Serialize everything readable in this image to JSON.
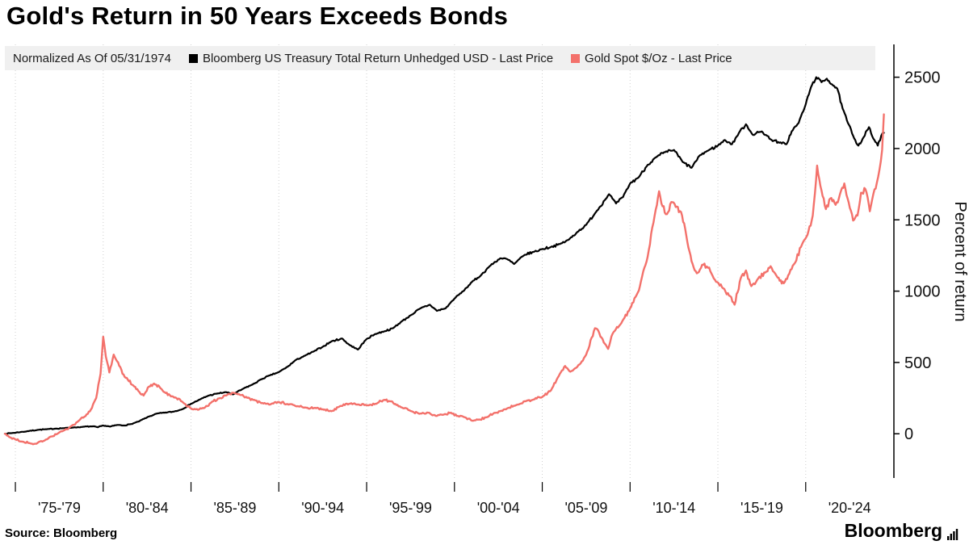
{
  "page": {
    "title": "Gold's Return in 50 Years Exceeds Bonds"
  },
  "legend": {
    "note": "Normalized As Of 05/31/1974",
    "series": [
      {
        "label": "Bloomberg US Treasury Total Return Unhedged USD - Last Price",
        "color": "#000000"
      },
      {
        "label": "Gold Spot $/Oz - Last Price",
        "color": "#f3716b"
      }
    ]
  },
  "footer": {
    "source": "Source: Bloomberg",
    "brand": "Bloomberg"
  },
  "chart_data": {
    "type": "line",
    "title": "Gold's Return in 50 Years Exceeds Bonds",
    "subtitle": "Normalized As Of 05/31/1974",
    "xlabel": "",
    "ylabel": "Percent of return",
    "y_axis_side": "right",
    "legend_position": "top",
    "grid": "vertical-dotted",
    "y_ticks": [
      0,
      500,
      1000,
      1500,
      2000,
      2500
    ],
    "ylim": [
      -310,
      2730
    ],
    "x_range": [
      1974.4,
      2024.7
    ],
    "x_tick_labels": [
      "'75-'79",
      "'80-'84",
      "'85-'89",
      "'90-'94",
      "'95-'99",
      "'00-'04",
      "'05-'09",
      "'10-'14",
      "'15-'19",
      "'20-'24"
    ],
    "x_tick_centers": [
      1977.5,
      1982.5,
      1987.5,
      1992.5,
      1997.5,
      2002.5,
      2007.5,
      2012.5,
      2017.5,
      2022.5
    ],
    "x_grid_years": [
      1975,
      1980,
      1985,
      1990,
      1995,
      2000,
      2005,
      2010,
      2015,
      2020
    ],
    "series": [
      {
        "name": "Bloomberg US Treasury Total Return Unhedged USD - Last Price",
        "color": "#000000",
        "points": [
          [
            1974.4,
            0
          ],
          [
            1974.8,
            5
          ],
          [
            1975.3,
            12
          ],
          [
            1975.8,
            20
          ],
          [
            1976.3,
            28
          ],
          [
            1976.8,
            32
          ],
          [
            1977.3,
            36
          ],
          [
            1977.8,
            40
          ],
          [
            1978.3,
            44
          ],
          [
            1978.8,
            48
          ],
          [
            1979.3,
            52
          ],
          [
            1979.7,
            46
          ],
          [
            1980.0,
            58
          ],
          [
            1980.4,
            50
          ],
          [
            1980.8,
            62
          ],
          [
            1981.2,
            58
          ],
          [
            1981.6,
            68
          ],
          [
            1982.0,
            85
          ],
          [
            1982.5,
            115
          ],
          [
            1983.0,
            140
          ],
          [
            1983.5,
            148
          ],
          [
            1984.0,
            155
          ],
          [
            1984.5,
            172
          ],
          [
            1985.0,
            210
          ],
          [
            1985.5,
            240
          ],
          [
            1986.0,
            268
          ],
          [
            1986.5,
            282
          ],
          [
            1987.0,
            292
          ],
          [
            1987.4,
            276
          ],
          [
            1988.0,
            318
          ],
          [
            1988.5,
            345
          ],
          [
            1989.0,
            382
          ],
          [
            1989.5,
            410
          ],
          [
            1990.0,
            432
          ],
          [
            1990.5,
            470
          ],
          [
            1991.0,
            520
          ],
          [
            1991.5,
            548
          ],
          [
            1992.0,
            578
          ],
          [
            1992.5,
            610
          ],
          [
            1993.0,
            648
          ],
          [
            1993.6,
            668
          ],
          [
            1994.0,
            625
          ],
          [
            1994.5,
            590
          ],
          [
            1995.0,
            665
          ],
          [
            1995.5,
            700
          ],
          [
            1996.0,
            718
          ],
          [
            1996.5,
            740
          ],
          [
            1997.0,
            788
          ],
          [
            1997.5,
            830
          ],
          [
            1998.0,
            875
          ],
          [
            1998.6,
            905
          ],
          [
            1999.0,
            862
          ],
          [
            1999.5,
            880
          ],
          [
            2000.0,
            948
          ],
          [
            2000.5,
            1000
          ],
          [
            2001.0,
            1065
          ],
          [
            2001.5,
            1110
          ],
          [
            2002.0,
            1175
          ],
          [
            2002.6,
            1230
          ],
          [
            2003.0,
            1225
          ],
          [
            2003.4,
            1190
          ],
          [
            2004.0,
            1255
          ],
          [
            2004.5,
            1275
          ],
          [
            2005.0,
            1295
          ],
          [
            2005.5,
            1310
          ],
          [
            2006.0,
            1330
          ],
          [
            2006.5,
            1360
          ],
          [
            2007.0,
            1415
          ],
          [
            2007.5,
            1465
          ],
          [
            2008.0,
            1545
          ],
          [
            2008.8,
            1680
          ],
          [
            2009.2,
            1615
          ],
          [
            2009.6,
            1660
          ],
          [
            2010.0,
            1755
          ],
          [
            2010.5,
            1800
          ],
          [
            2011.0,
            1885
          ],
          [
            2011.5,
            1940
          ],
          [
            2012.0,
            1975
          ],
          [
            2012.5,
            1990
          ],
          [
            2013.0,
            1905
          ],
          [
            2013.5,
            1865
          ],
          [
            2014.0,
            1955
          ],
          [
            2014.5,
            1990
          ],
          [
            2015.0,
            2020
          ],
          [
            2015.4,
            2060
          ],
          [
            2015.8,
            2030
          ],
          [
            2016.2,
            2110
          ],
          [
            2016.6,
            2170
          ],
          [
            2017.0,
            2095
          ],
          [
            2017.5,
            2120
          ],
          [
            2018.0,
            2065
          ],
          [
            2018.5,
            2040
          ],
          [
            2018.9,
            2030
          ],
          [
            2019.2,
            2120
          ],
          [
            2019.6,
            2180
          ],
          [
            2020.0,
            2310
          ],
          [
            2020.3,
            2430
          ],
          [
            2020.6,
            2500
          ],
          [
            2020.9,
            2465
          ],
          [
            2021.2,
            2490
          ],
          [
            2021.5,
            2450
          ],
          [
            2021.8,
            2420
          ],
          [
            2022.1,
            2280
          ],
          [
            2022.4,
            2180
          ],
          [
            2022.7,
            2090
          ],
          [
            2023.0,
            2020
          ],
          [
            2023.3,
            2080
          ],
          [
            2023.6,
            2150
          ],
          [
            2023.85,
            2070
          ],
          [
            2024.1,
            2020
          ],
          [
            2024.3,
            2090
          ],
          [
            2024.45,
            2110
          ]
        ]
      },
      {
        "name": "Gold Spot $/Oz - Last Price",
        "color": "#f3716b",
        "points": [
          [
            1974.4,
            0
          ],
          [
            1974.7,
            -25
          ],
          [
            1975.0,
            -40
          ],
          [
            1975.4,
            -55
          ],
          [
            1975.8,
            -65
          ],
          [
            1976.2,
            -70
          ],
          [
            1976.6,
            -50
          ],
          [
            1977.0,
            -20
          ],
          [
            1977.4,
            0
          ],
          [
            1977.8,
            25
          ],
          [
            1978.2,
            55
          ],
          [
            1978.6,
            90
          ],
          [
            1979.0,
            125
          ],
          [
            1979.3,
            170
          ],
          [
            1979.6,
            250
          ],
          [
            1979.85,
            420
          ],
          [
            1980.0,
            680
          ],
          [
            1980.15,
            540
          ],
          [
            1980.35,
            430
          ],
          [
            1980.6,
            555
          ],
          [
            1980.85,
            500
          ],
          [
            1981.1,
            420
          ],
          [
            1981.4,
            380
          ],
          [
            1981.7,
            340
          ],
          [
            1982.0,
            300
          ],
          [
            1982.3,
            268
          ],
          [
            1982.6,
            330
          ],
          [
            1982.9,
            352
          ],
          [
            1983.2,
            330
          ],
          [
            1983.5,
            292
          ],
          [
            1983.8,
            270
          ],
          [
            1984.1,
            255
          ],
          [
            1984.5,
            225
          ],
          [
            1985.0,
            178
          ],
          [
            1985.4,
            168
          ],
          [
            1985.8,
            185
          ],
          [
            1986.2,
            225
          ],
          [
            1986.6,
            248
          ],
          [
            1987.0,
            268
          ],
          [
            1987.4,
            288
          ],
          [
            1987.8,
            272
          ],
          [
            1988.2,
            252
          ],
          [
            1988.6,
            238
          ],
          [
            1989.0,
            215
          ],
          [
            1989.5,
            205
          ],
          [
            1990.0,
            222
          ],
          [
            1990.5,
            208
          ],
          [
            1991.0,
            192
          ],
          [
            1991.5,
            185
          ],
          [
            1992.0,
            180
          ],
          [
            1992.5,
            172
          ],
          [
            1993.0,
            158
          ],
          [
            1993.5,
            195
          ],
          [
            1994.0,
            210
          ],
          [
            1994.5,
            205
          ],
          [
            1995.0,
            200
          ],
          [
            1995.5,
            210
          ],
          [
            1996.0,
            238
          ],
          [
            1996.4,
            228
          ],
          [
            1997.0,
            185
          ],
          [
            1997.5,
            160
          ],
          [
            1998.0,
            140
          ],
          [
            1998.5,
            148
          ],
          [
            1999.0,
            125
          ],
          [
            1999.4,
            135
          ],
          [
            1999.8,
            148
          ],
          [
            2000.2,
            125
          ],
          [
            2000.6,
            115
          ],
          [
            2001.0,
            92
          ],
          [
            2001.4,
            100
          ],
          [
            2001.8,
            115
          ],
          [
            2002.2,
            140
          ],
          [
            2002.6,
            158
          ],
          [
            2003.0,
            178
          ],
          [
            2003.5,
            200
          ],
          [
            2004.0,
            228
          ],
          [
            2004.5,
            240
          ],
          [
            2005.0,
            258
          ],
          [
            2005.5,
            305
          ],
          [
            2006.0,
            420
          ],
          [
            2006.3,
            475
          ],
          [
            2006.6,
            435
          ],
          [
            2007.0,
            470
          ],
          [
            2007.5,
            555
          ],
          [
            2008.0,
            740
          ],
          [
            2008.25,
            705
          ],
          [
            2008.5,
            640
          ],
          [
            2008.75,
            595
          ],
          [
            2009.0,
            700
          ],
          [
            2009.5,
            775
          ],
          [
            2010.0,
            880
          ],
          [
            2010.5,
            1005
          ],
          [
            2011.0,
            1240
          ],
          [
            2011.4,
            1530
          ],
          [
            2011.65,
            1700
          ],
          [
            2011.85,
            1595
          ],
          [
            2012.1,
            1540
          ],
          [
            2012.35,
            1625
          ],
          [
            2012.6,
            1590
          ],
          [
            2012.9,
            1555
          ],
          [
            2013.2,
            1390
          ],
          [
            2013.5,
            1210
          ],
          [
            2013.8,
            1125
          ],
          [
            2014.1,
            1185
          ],
          [
            2014.5,
            1165
          ],
          [
            2014.9,
            1065
          ],
          [
            2015.3,
            1020
          ],
          [
            2015.7,
            965
          ],
          [
            2015.95,
            905
          ],
          [
            2016.3,
            1090
          ],
          [
            2016.6,
            1145
          ],
          [
            2016.9,
            1035
          ],
          [
            2017.3,
            1090
          ],
          [
            2017.7,
            1130
          ],
          [
            2018.0,
            1175
          ],
          [
            2018.4,
            1095
          ],
          [
            2018.75,
            1055
          ],
          [
            2019.0,
            1110
          ],
          [
            2019.4,
            1200
          ],
          [
            2019.8,
            1330
          ],
          [
            2020.1,
            1395
          ],
          [
            2020.4,
            1530
          ],
          [
            2020.65,
            1880
          ],
          [
            2020.9,
            1705
          ],
          [
            2021.15,
            1575
          ],
          [
            2021.4,
            1650
          ],
          [
            2021.7,
            1605
          ],
          [
            2021.95,
            1680
          ],
          [
            2022.2,
            1755
          ],
          [
            2022.45,
            1620
          ],
          [
            2022.7,
            1495
          ],
          [
            2022.95,
            1530
          ],
          [
            2023.15,
            1690
          ],
          [
            2023.4,
            1715
          ],
          [
            2023.65,
            1560
          ],
          [
            2023.85,
            1680
          ],
          [
            2024.05,
            1760
          ],
          [
            2024.2,
            1850
          ],
          [
            2024.35,
            1990
          ],
          [
            2024.45,
            2240
          ]
        ]
      }
    ]
  }
}
